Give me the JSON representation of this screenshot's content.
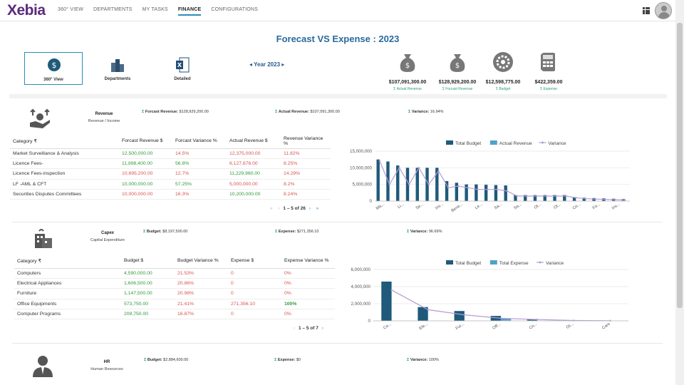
{
  "nav": {
    "logo": "Xebia",
    "items": [
      "360° VIEW",
      "DEPARTMENTS",
      "MY TASKS",
      "FINANCE",
      "CONFIGURATIONS"
    ],
    "active": "FINANCE"
  },
  "page_title": "Forecast VS Expense : 2023",
  "views": {
    "view360": "360° View",
    "departments": "Departments",
    "detailed": "Detailed"
  },
  "year_selector": "Year 2023",
  "kpis": [
    {
      "value": "$107,091,300.00",
      "label": "Actual Revenue",
      "icon": "money-bag-icon"
    },
    {
      "value": "$128,929,200.00",
      "label": "Forcast Revenue",
      "icon": "money-bag-icon"
    },
    {
      "value": "$12,598,775.00",
      "label": "Budget",
      "icon": "gear-icon"
    },
    {
      "value": "$422,359.00",
      "label": "Expense",
      "icon": "calculator-icon"
    }
  ],
  "sigma": "Σ",
  "revenue": {
    "title": "Revenue",
    "subtitle": "Revenue / Income",
    "forecast_label": "Forcast Revenue:",
    "forecast_value": "$128,929,200.00",
    "actual_label": "Actual Revenue:",
    "actual_value": "$107,091,300.00",
    "variance_label": "Variance:",
    "variance_value": "16.94%",
    "headers": [
      "Category ₹",
      "Forcast Revenue $",
      "Forcast Variance %",
      "Actual Revenue $",
      "Revenue Variance %"
    ],
    "rows": [
      [
        "Market Surveillance & Analysis",
        "12,500,000.00",
        "14.5%",
        "12,375,000.00",
        "11.82%"
      ],
      [
        "Licence Fees-",
        "11,898,400.00",
        "56.8%",
        "6,127,676.00",
        "8.25%"
      ],
      [
        "Licence Fees-inspection",
        "10,695,200.00",
        "12.7%",
        "11,229,960.00",
        "14.29%"
      ],
      [
        "LF -AML & CFT",
        "10,000,000.00",
        "57.25%",
        "5,000,000.00",
        "8.2%"
      ],
      [
        "Securities Disputes Committees",
        "10,000,000.00",
        "16.3%",
        "10,200,000.00",
        "8.24%"
      ]
    ],
    "pager": "1 – 5 of 26"
  },
  "capex": {
    "title": "Capex",
    "subtitle": "Capital Expenditure",
    "budget_label": "Budget:",
    "budget_value": "$8,197,500.00",
    "expense_label": "Expense:",
    "expense_value": "$271,356.10",
    "variance_label": "Variance:",
    "variance_value": "96.69%",
    "headers": [
      "Category ₹",
      "Budget $",
      "Budget Variance %",
      "Expense $",
      "Expense Variance %"
    ],
    "rows": [
      [
        "Computers",
        "4,590,000.00",
        "21.53%",
        "0",
        "0%"
      ],
      [
        "Electrical Appliances",
        "1,606,500.00",
        "20.86%",
        "0",
        "0%"
      ],
      [
        "Furniture",
        "1,147,500.00",
        "20.98%",
        "0",
        "0%"
      ],
      [
        "Office Equipments",
        "573,750.00",
        "21.41%",
        "271,356.10",
        "100%"
      ],
      [
        "Computer Programs",
        "209,750.00",
        "16.87%",
        "0",
        "0%"
      ]
    ],
    "pager": "1 – 5 of 7"
  },
  "hr": {
    "title": "HR",
    "subtitle": "Human Resources",
    "budget_label": "Budget:",
    "budget_value": "$2,884,600.00",
    "expense_label": "Expense:",
    "expense_value": "$0",
    "variance_label": "Variance:",
    "variance_value": "100%"
  },
  "chart_data": [
    {
      "type": "bar",
      "legend": [
        "Total Budget",
        "Actual Revenue",
        "Variance"
      ],
      "legend_position": "top",
      "ylim": [
        0,
        15000000
      ],
      "yticks": [
        "15,000,000",
        "10,000,000",
        "5,000,000",
        "0"
      ],
      "xtick_labels": [
        "Ma...",
        "Li...",
        "Se...",
        "Inv...",
        "Bene...",
        "Le...",
        "Sa...",
        "Sa...",
        "Ot...",
        "Ot...",
        "Co...",
        "Fo...",
        "Inv..."
      ],
      "series": [
        {
          "name": "Total Budget",
          "color": "#1f5a7a",
          "values": [
            12500000,
            11898400,
            10695200,
            10000000,
            10000000,
            10000000,
            10000000,
            6000000,
            5500000,
            5000000,
            5000000,
            4900000,
            4800000,
            4700000,
            1800000,
            1800000,
            1800000,
            1800000,
            1800000,
            1800000,
            1200000,
            1000000,
            900000,
            800000,
            700000,
            600000
          ]
        },
        {
          "name": "Actual Revenue",
          "color": "#4fa3c9",
          "values": [
            0,
            0,
            0,
            0,
            0,
            0,
            0,
            0,
            0,
            0,
            0,
            0,
            0,
            0,
            0,
            0,
            0,
            0,
            0,
            0,
            0,
            0,
            0,
            0,
            0,
            0
          ]
        },
        {
          "name": "Variance",
          "color": "#b59bd6",
          "values": [
            12000000,
            5000000,
            10000000,
            5000000,
            10000000,
            5000000,
            9000000,
            4000000,
            4500000,
            4000000,
            3500000,
            3500000,
            3500000,
            3000000,
            1500000,
            1500000,
            1500000,
            1500000,
            1500000,
            1500000,
            1000000,
            700000,
            600000,
            500000,
            400000,
            300000
          ]
        }
      ]
    },
    {
      "type": "bar",
      "legend": [
        "Total Budget",
        "Total Expense",
        "Variance"
      ],
      "legend_position": "top",
      "ylim": [
        0,
        6000000
      ],
      "yticks": [
        "6,000,000",
        "4,000,000",
        "2,000,000",
        "0"
      ],
      "xtick_labels": [
        "Co...",
        "Ele...",
        "Fur...",
        "Off...",
        "Co...",
        "Ot...",
        "Cars"
      ],
      "series": [
        {
          "name": "Total Budget",
          "color": "#1f5a7a",
          "values": [
            4590000,
            1606500,
            1147500,
            573750,
            209750,
            40000,
            30000
          ]
        },
        {
          "name": "Total Expense",
          "color": "#4fa3c9",
          "values": [
            0,
            0,
            0,
            271356,
            0,
            0,
            0
          ]
        },
        {
          "name": "Variance",
          "color": "#b59bd6",
          "values": [
            3600000,
            1300000,
            700000,
            300000,
            150000,
            40000,
            20000
          ]
        }
      ]
    }
  ]
}
